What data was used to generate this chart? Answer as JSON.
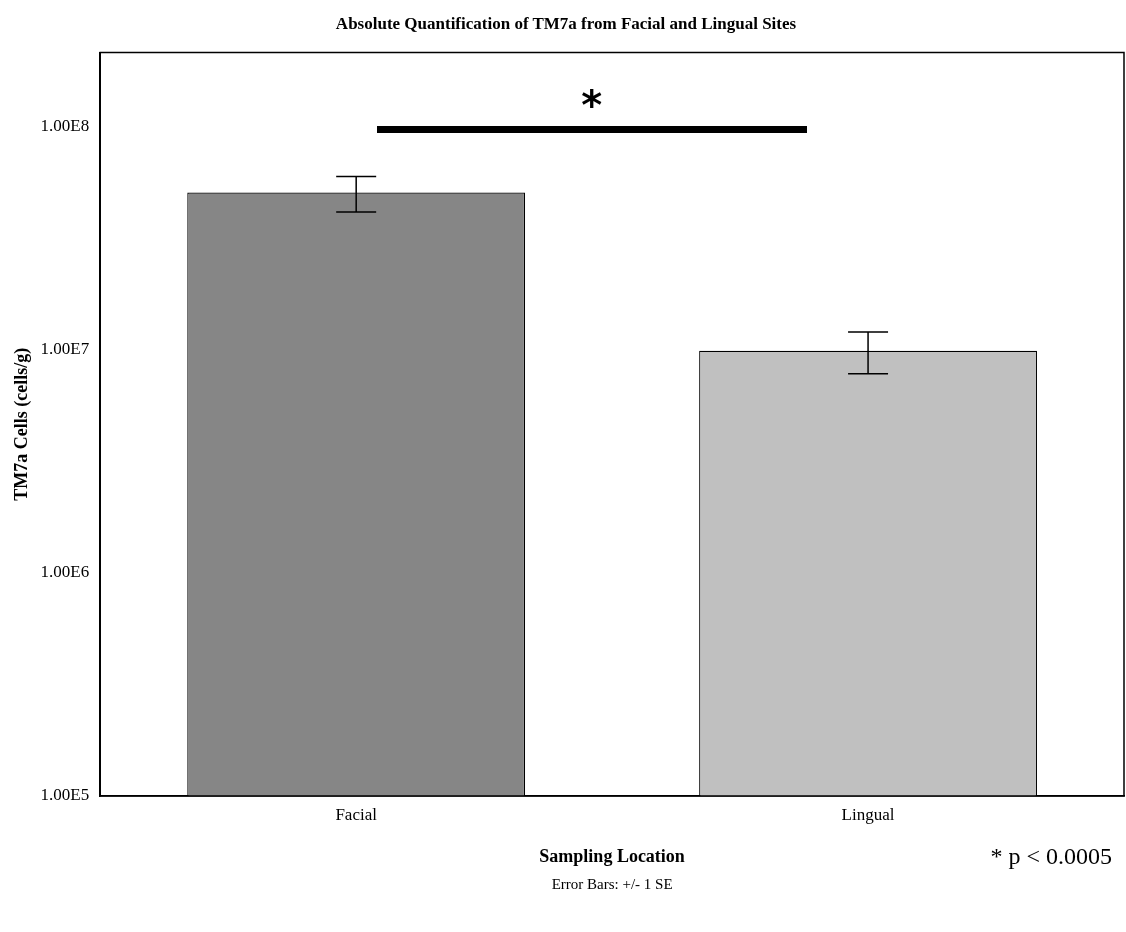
{
  "chart_data": {
    "type": "bar",
    "title": "Absolute Quantification of TM7a from Facial and Lingual Sites",
    "xlabel": "Sampling Location",
    "ylabel": "TM7a Cells (cells/g)",
    "categories": [
      "Facial",
      "Lingual"
    ],
    "values": [
      50600000,
      9900000
    ],
    "colors": [
      "#868686",
      "#c0c0c0"
    ],
    "errors": [
      [
        41400000,
        59800000
      ],
      [
        7800000,
        12000000
      ]
    ],
    "log": true,
    "ylim": [
      100000,
      215000000
    ],
    "yticks": [
      {
        "value": 100000,
        "label": "1.00E5"
      },
      {
        "value": 1000000,
        "label": "1.00E6"
      },
      {
        "value": 10000000,
        "label": "1.00E7"
      },
      {
        "value": 100000000,
        "label": "1.00E8"
      }
    ],
    "grid": false,
    "legend": false,
    "annotations": [
      "*",
      "* p < 0.0005",
      "Error Bars: +/- 1 SE"
    ]
  }
}
